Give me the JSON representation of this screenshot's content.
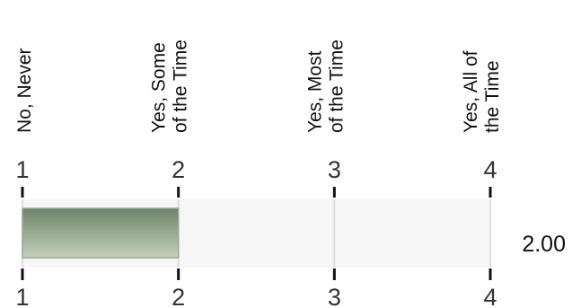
{
  "chart_data": {
    "type": "bar",
    "orientation": "horizontal",
    "scale_categories": [
      [
        "No, Never"
      ],
      [
        "Yes, Some",
        "of the Time"
      ],
      [
        "Yes, Most",
        "of the Time"
      ],
      [
        "Yes, All of",
        "the Time"
      ]
    ],
    "ticks": [
      "1",
      "2",
      "3",
      "4"
    ],
    "xlim": [
      1,
      4
    ],
    "value": 2.0,
    "value_label": "2.00",
    "grid": true,
    "colors": {
      "bar_dark": "#6e8466",
      "bar_light": "#c3d0bd",
      "bar_border": "#9aab92",
      "grid": "#dddddd",
      "band": "#f6f6f6",
      "tick": "#111111"
    }
  }
}
